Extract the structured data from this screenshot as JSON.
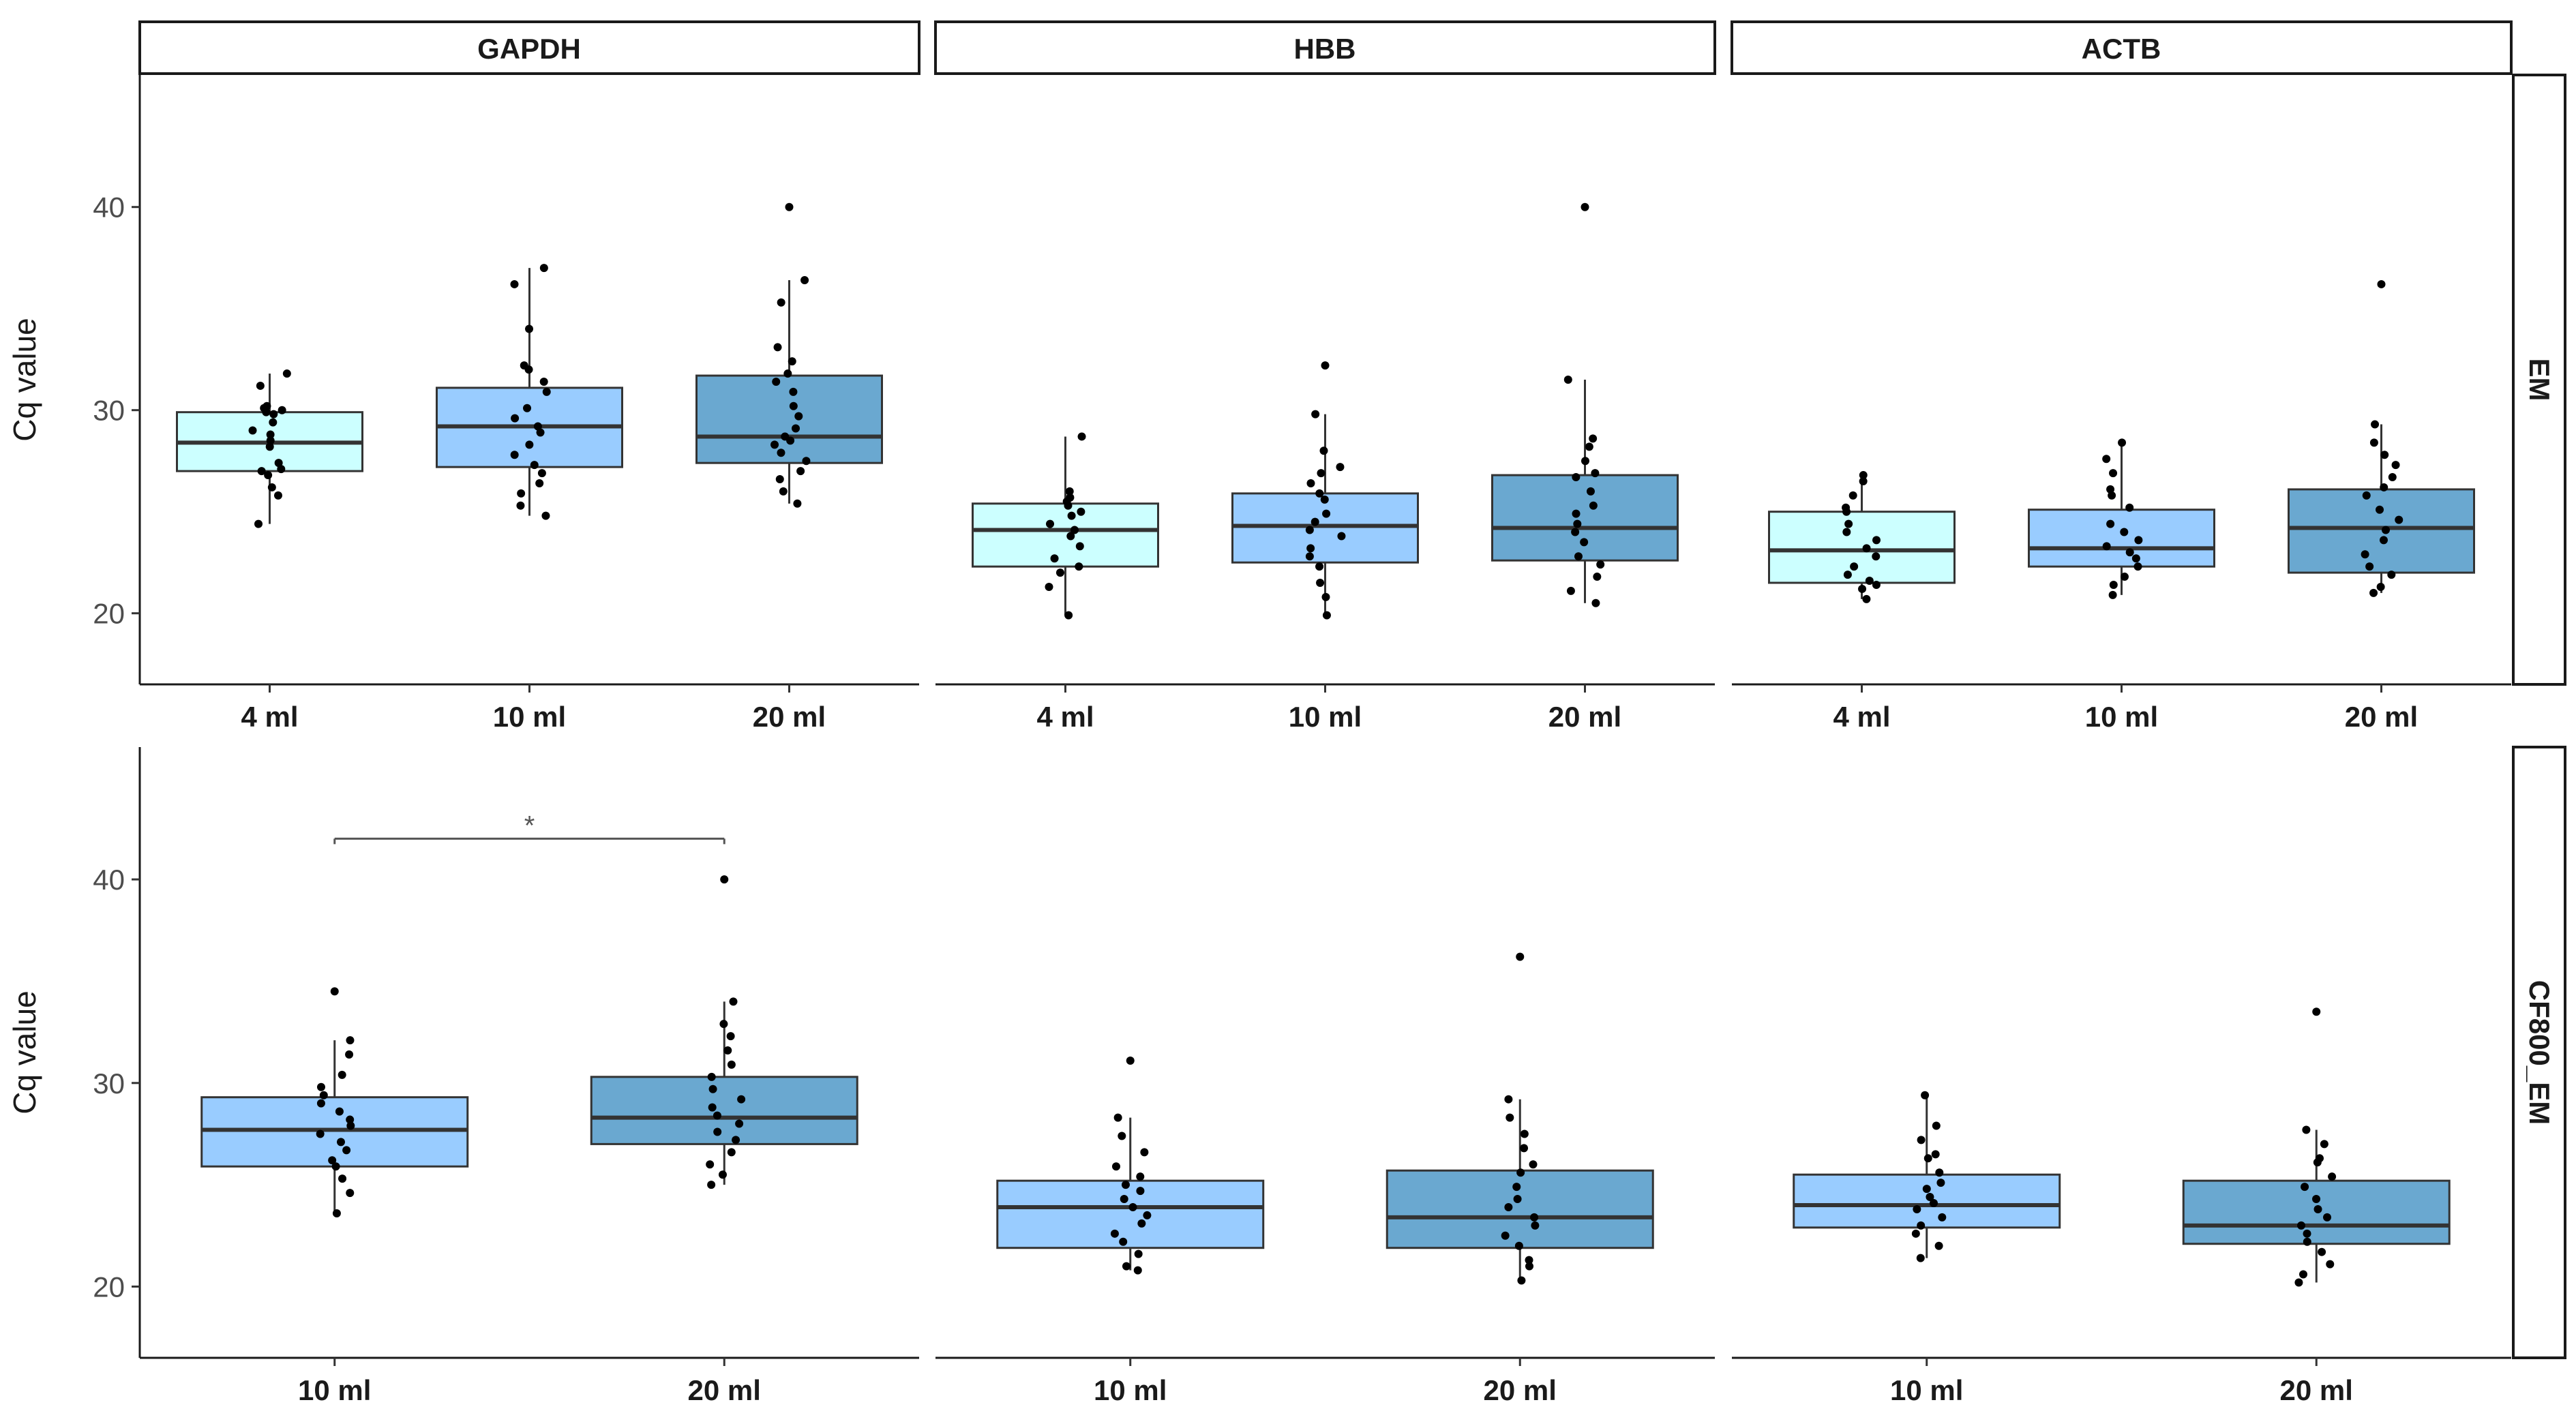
{
  "chart_data": {
    "type": "box",
    "ylabel": "Cq value",
    "ylim": [
      16.5,
      46.5
    ],
    "yticks": [
      20,
      30,
      40
    ],
    "colors": {
      "4 ml": "#ccffff",
      "10 ml": "#99ccff",
      "20 ml": "#6aa8d0",
      "point": "#000000",
      "box_line": "#333333",
      "significance": "#555555"
    },
    "columns": [
      "GAPDH",
      "HBB",
      "ACTB"
    ],
    "rows": [
      "EM",
      "CF800_EM"
    ],
    "panels": [
      {
        "row": "EM",
        "gene": "GAPDH",
        "groups": [
          {
            "label": "4 ml",
            "q1": 27.0,
            "median": 28.4,
            "q3": 29.9,
            "whisker_low": 24.4,
            "whisker_high": 31.8,
            "outliers": [],
            "points": [
              24.4,
              25.8,
              26.2,
              26.8,
              27.0,
              27.1,
              27.4,
              28.2,
              28.5,
              28.8,
              29.0,
              29.4,
              29.8,
              29.9,
              30.0,
              30.1,
              30.2,
              31.2,
              31.8
            ]
          },
          {
            "label": "10 ml",
            "q1": 27.2,
            "median": 29.2,
            "q3": 31.1,
            "whisker_low": 24.8,
            "whisker_high": 37.0,
            "outliers": [],
            "points": [
              24.8,
              25.3,
              25.9,
              26.4,
              26.9,
              27.3,
              27.8,
              28.3,
              28.9,
              29.2,
              29.6,
              30.1,
              30.9,
              31.4,
              32.0,
              32.2,
              34.0,
              36.2,
              37.0
            ]
          },
          {
            "label": "20 ml",
            "q1": 27.4,
            "median": 28.7,
            "q3": 31.7,
            "whisker_low": 25.4,
            "whisker_high": 36.4,
            "outliers": [
              40.0
            ],
            "points": [
              25.4,
              26.0,
              26.6,
              27.0,
              27.5,
              27.9,
              28.3,
              28.5,
              28.7,
              29.1,
              29.7,
              30.2,
              30.9,
              31.4,
              31.8,
              32.4,
              33.1,
              35.3,
              36.4
            ]
          }
        ]
      },
      {
        "row": "EM",
        "gene": "HBB",
        "groups": [
          {
            "label": "4 ml",
            "q1": 22.3,
            "median": 24.1,
            "q3": 25.4,
            "whisker_low": 19.9,
            "whisker_high": 28.7,
            "outliers": [],
            "points": [
              19.9,
              21.3,
              22.0,
              22.3,
              22.7,
              23.3,
              23.8,
              24.1,
              24.4,
              24.8,
              25.0,
              25.3,
              25.5,
              25.7,
              26.0,
              28.7
            ]
          },
          {
            "label": "10 ml",
            "q1": 22.5,
            "median": 24.3,
            "q3": 25.9,
            "whisker_low": 19.9,
            "whisker_high": 29.8,
            "outliers": [
              32.2
            ],
            "points": [
              19.9,
              20.8,
              21.5,
              22.3,
              22.8,
              23.2,
              23.8,
              24.1,
              24.5,
              24.9,
              25.6,
              25.9,
              26.4,
              26.9,
              27.2,
              28.0,
              29.8
            ]
          },
          {
            "label": "20 ml",
            "q1": 22.6,
            "median": 24.2,
            "q3": 26.8,
            "whisker_low": 20.5,
            "whisker_high": 31.5,
            "outliers": [
              40.0
            ],
            "points": [
              20.5,
              21.1,
              21.8,
              22.4,
              22.8,
              23.5,
              24.0,
              24.4,
              24.9,
              25.3,
              26.0,
              26.7,
              26.9,
              27.5,
              28.2,
              28.6,
              31.5
            ]
          }
        ]
      },
      {
        "row": "EM",
        "gene": "ACTB",
        "groups": [
          {
            "label": "4 ml",
            "q1": 21.5,
            "median": 23.1,
            "q3": 25.0,
            "whisker_low": 20.7,
            "whisker_high": 26.8,
            "outliers": [],
            "points": [
              20.7,
              21.2,
              21.4,
              21.6,
              21.9,
              22.3,
              22.8,
              23.2,
              23.6,
              24.0,
              24.4,
              25.0,
              25.2,
              25.8,
              26.5,
              26.8
            ]
          },
          {
            "label": "10 ml",
            "q1": 22.3,
            "median": 23.2,
            "q3": 25.1,
            "whisker_low": 20.9,
            "whisker_high": 28.4,
            "outliers": [],
            "points": [
              20.9,
              21.4,
              21.8,
              22.3,
              22.7,
              23.0,
              23.3,
              23.6,
              24.0,
              24.4,
              25.2,
              25.8,
              26.1,
              26.9,
              27.6,
              28.4
            ]
          },
          {
            "label": "20 ml",
            "q1": 22.0,
            "median": 24.2,
            "q3": 26.1,
            "whisker_low": 21.0,
            "whisker_high": 29.3,
            "outliers": [
              36.2
            ],
            "points": [
              21.0,
              21.3,
              21.9,
              22.3,
              22.9,
              23.6,
              24.1,
              24.6,
              25.1,
              25.8,
              26.2,
              26.7,
              27.3,
              27.8,
              28.4,
              29.3
            ]
          }
        ]
      },
      {
        "row": "CF800_EM",
        "gene": "GAPDH",
        "significance": {
          "from": "10 ml",
          "to": "20 ml",
          "y": 42.0,
          "label": "*"
        },
        "groups": [
          {
            "label": "10 ml",
            "q1": 25.9,
            "median": 27.7,
            "q3": 29.3,
            "whisker_low": 23.6,
            "whisker_high": 32.1,
            "outliers": [
              34.5
            ],
            "points": [
              23.6,
              24.6,
              25.3,
              25.9,
              26.2,
              26.7,
              27.1,
              27.5,
              27.9,
              28.2,
              28.6,
              29.0,
              29.4,
              29.8,
              30.4,
              31.4,
              32.1
            ]
          },
          {
            "label": "20 ml",
            "q1": 27.0,
            "median": 28.3,
            "q3": 30.3,
            "whisker_low": 25.0,
            "whisker_high": 34.0,
            "outliers": [
              40.0
            ],
            "points": [
              25.0,
              25.5,
              26.0,
              26.6,
              27.2,
              27.6,
              28.0,
              28.4,
              28.8,
              29.2,
              29.7,
              30.3,
              30.9,
              31.6,
              32.3,
              32.9,
              34.0
            ]
          }
        ]
      },
      {
        "row": "CF800_EM",
        "gene": "HBB",
        "groups": [
          {
            "label": "10 ml",
            "q1": 21.9,
            "median": 23.9,
            "q3": 25.2,
            "whisker_low": 20.8,
            "whisker_high": 28.3,
            "outliers": [
              31.1
            ],
            "points": [
              20.8,
              21.0,
              21.6,
              22.2,
              22.6,
              23.1,
              23.5,
              23.9,
              24.3,
              24.7,
              25.0,
              25.4,
              25.9,
              26.6,
              27.4,
              28.3
            ]
          },
          {
            "label": "20 ml",
            "q1": 21.9,
            "median": 23.4,
            "q3": 25.7,
            "whisker_low": 20.3,
            "whisker_high": 29.2,
            "outliers": [
              36.2
            ],
            "points": [
              20.3,
              21.0,
              21.3,
              22.0,
              22.5,
              23.0,
              23.4,
              23.9,
              24.3,
              24.9,
              25.6,
              26.0,
              26.8,
              27.5,
              28.3,
              29.2
            ]
          }
        ]
      },
      {
        "row": "CF800_EM",
        "gene": "ACTB",
        "groups": [
          {
            "label": "10 ml",
            "q1": 22.9,
            "median": 24.0,
            "q3": 25.5,
            "whisker_low": 21.4,
            "whisker_high": 29.4,
            "outliers": [],
            "points": [
              21.4,
              22.0,
              22.6,
              23.0,
              23.4,
              23.8,
              24.1,
              24.4,
              24.8,
              25.1,
              25.6,
              26.3,
              26.5,
              27.2,
              27.9,
              29.4
            ]
          },
          {
            "label": "20 ml",
            "q1": 22.1,
            "median": 23.0,
            "q3": 25.2,
            "whisker_low": 20.2,
            "whisker_high": 27.7,
            "outliers": [
              33.5
            ],
            "points": [
              20.2,
              20.6,
              21.1,
              21.7,
              22.2,
              22.6,
              23.0,
              23.4,
              23.8,
              24.3,
              24.9,
              25.4,
              26.1,
              26.3,
              27.0,
              27.7
            ]
          }
        ]
      }
    ]
  }
}
